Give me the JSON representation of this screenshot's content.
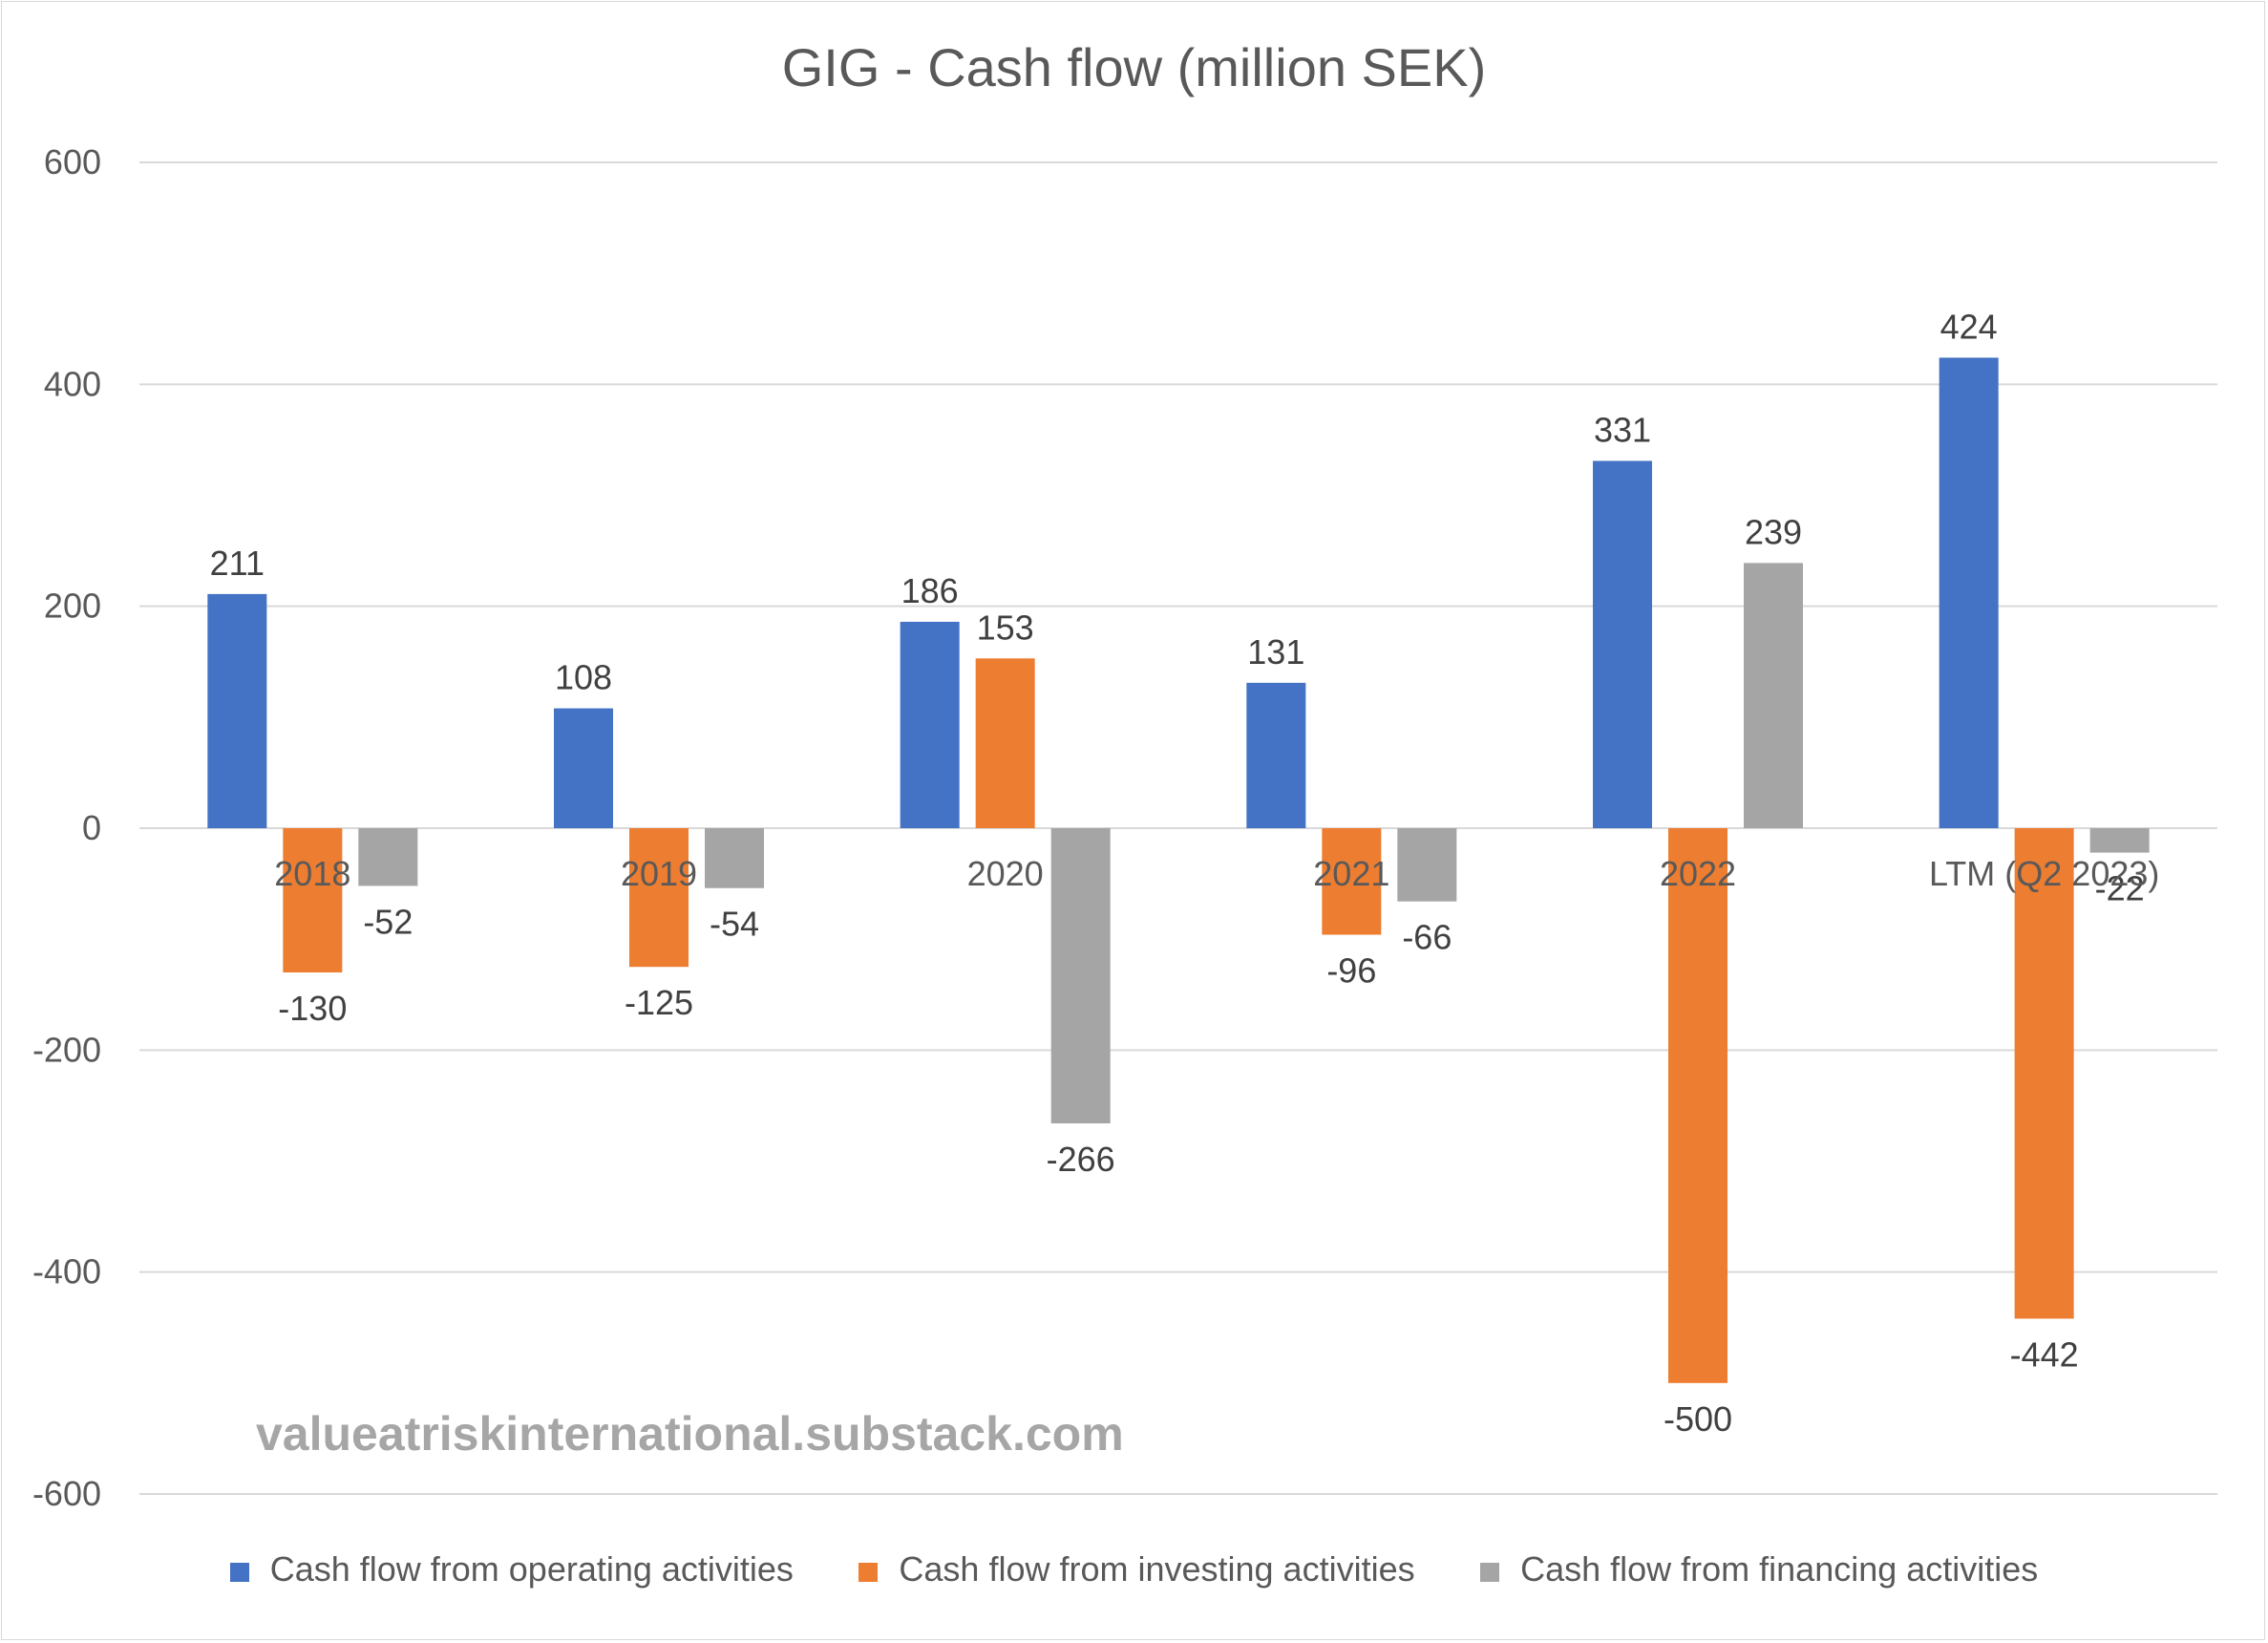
{
  "chart_data": {
    "type": "bar",
    "title": "GIG - Cash flow (million SEK)",
    "categories": [
      "2018",
      "2019",
      "2020",
      "2021",
      "2022",
      "LTM (Q2 2023)"
    ],
    "series": [
      {
        "name": "Cash flow from operating activities",
        "color": "#4472c4",
        "values": [
          211,
          108,
          186,
          131,
          331,
          424
        ]
      },
      {
        "name": "Cash flow from investing activities",
        "color": "#ed7d31",
        "values": [
          -130,
          -125,
          153,
          -96,
          -500,
          -442
        ]
      },
      {
        "name": "Cash flow from financing activities",
        "color": "#a5a5a5",
        "values": [
          -52,
          -54,
          -266,
          -66,
          239,
          -22
        ]
      }
    ],
    "ylim": [
      -600,
      600
    ],
    "yticks": [
      600,
      400,
      200,
      0,
      -200,
      -400,
      -600
    ],
    "grid": true,
    "legend": "bottom"
  },
  "watermark": "valueatriskinternational.substack.com"
}
